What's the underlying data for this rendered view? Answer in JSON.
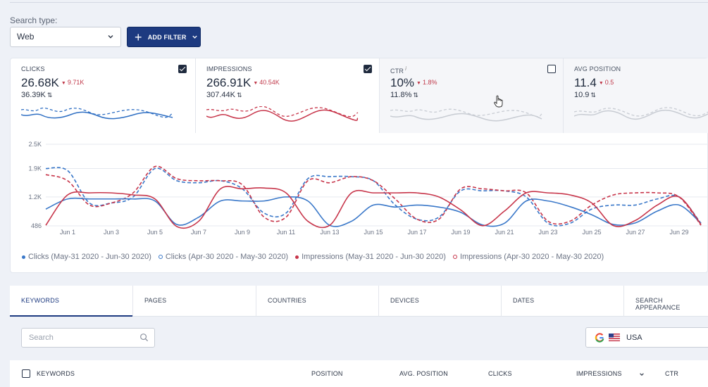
{
  "filters": {
    "search_type_label": "Search type:",
    "search_type_value": "Web",
    "add_filter_label": "ADD FILTER"
  },
  "metrics": [
    {
      "label": "CLICKS",
      "value": "26.68K",
      "delta": "9.71K",
      "previous": "36.39K",
      "checked": true,
      "color": "#2f6fc3"
    },
    {
      "label": "IMPRESSIONS",
      "value": "266.91K",
      "delta": "40.54K",
      "previous": "307.44K",
      "checked": true,
      "color": "#c7354a"
    },
    {
      "label": "CTR",
      "info": "i",
      "value": "10%",
      "delta": "1.8%",
      "previous": "11.8%",
      "checked": false,
      "color": "#c8ccd3"
    },
    {
      "label": "AVG POSITION",
      "value": "11.4",
      "delta": "0.5",
      "previous": "10.9",
      "checked": false,
      "color": "#c8ccd3"
    }
  ],
  "chart_data": {
    "type": "line",
    "y_ticks": [
      "2.5K",
      "1.9K",
      "1.2K",
      "486"
    ],
    "ylim": [
      486,
      2500
    ],
    "x_labels": [
      "Jun 1",
      "Jun 3",
      "Jun 5",
      "Jun 7",
      "Jun 9",
      "Jun 11",
      "Jun 13",
      "Jun 15",
      "Jun 17",
      "Jun 19",
      "Jun 21",
      "Jun 23",
      "Jun 25",
      "Jun 27",
      "Jun 29"
    ],
    "series": [
      {
        "name": "Clicks (May-31 2020 - Jun-30 2020)",
        "style": "solid",
        "color": "#3a78c9",
        "values": [
          900,
          1150,
          1150,
          1150,
          1150,
          1100,
          520,
          700,
          1100,
          1100,
          1100,
          1200,
          1100,
          500,
          600,
          1000,
          950,
          1000,
          950,
          820,
          510,
          550,
          1100,
          1100,
          960,
          760,
          520,
          560,
          850,
          1000,
          550
        ]
      },
      {
        "name": "Clicks (Apr-30 2020 - May-30 2020)",
        "style": "dashed",
        "color": "#3a78c9",
        "values": [
          1900,
          1850,
          1050,
          1050,
          1200,
          1900,
          1600,
          1550,
          1600,
          1400,
          800,
          800,
          1650,
          1700,
          1700,
          1600,
          1000,
          650,
          700,
          1350,
          1350,
          1350,
          1200,
          550,
          550,
          900,
          1000,
          1000,
          1150,
          1200,
          550
        ]
      },
      {
        "name": "Impressions (May-31 2020 - Jun-30 2020)",
        "style": "solid",
        "color": "#c7354a",
        "values": [
          500,
          1250,
          1300,
          1300,
          1250,
          1150,
          470,
          600,
          1400,
          1400,
          1420,
          1300,
          600,
          500,
          1300,
          1300,
          1300,
          1300,
          1200,
          880,
          490,
          850,
          1300,
          1300,
          1250,
          1050,
          490,
          620,
          1000,
          1200,
          520
        ]
      },
      {
        "name": "Impressions (Apr-30 2020 - May-30 2020)",
        "style": "dashed",
        "color": "#c7354a",
        "values": [
          1750,
          1600,
          1000,
          1050,
          1300,
          1950,
          1650,
          1600,
          1600,
          1500,
          700,
          700,
          1600,
          1550,
          1700,
          1600,
          1150,
          650,
          650,
          1400,
          1400,
          1350,
          1300,
          600,
          600,
          1000,
          1250,
          1300,
          1300,
          1200,
          500
        ]
      }
    ]
  },
  "tabs": [
    "KEYWORDS",
    "PAGES",
    "COUNTRIES",
    "DEVICES",
    "DATES",
    "SEARCH APPEARANCE"
  ],
  "table": {
    "search_placeholder": "Search",
    "country": "USA",
    "columns": [
      "KEYWORDS",
      "POSITION",
      "AVG. POSITION",
      "CLICKS",
      "IMPRESSIONS",
      "CTR"
    ]
  }
}
